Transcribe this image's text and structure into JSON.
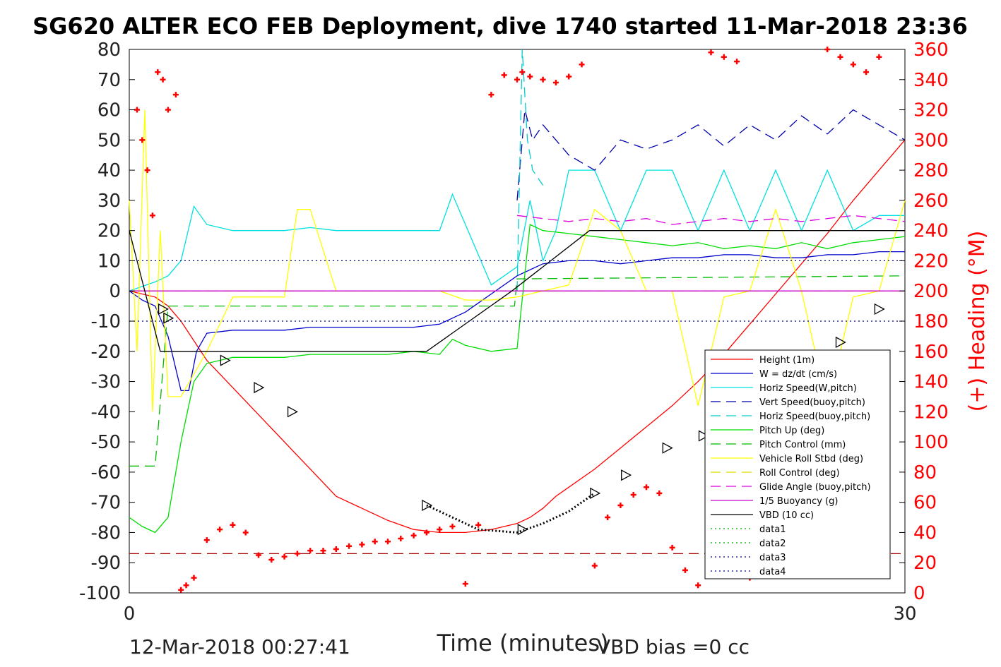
{
  "chart_data": {
    "type": "line",
    "title": "SG620 ALTER ECO FEB Deployment, dive 1740 started 11-Mar-2018 23:36",
    "xlabel": "Time (minutes)",
    "ylabel": "",
    "y2label": "(+) Heading (°M)",
    "xlim": [
      0,
      30
    ],
    "ylim": [
      -100,
      80
    ],
    "y2lim": [
      0,
      360
    ],
    "xticks": [
      "0",
      "30"
    ],
    "yticks": [
      "80",
      "70",
      "60",
      "50",
      "40",
      "30",
      "20",
      "10",
      "0",
      "-10",
      "-20",
      "-30",
      "-40",
      "-50",
      "-60",
      "-70",
      "-80",
      "-90",
      "-100"
    ],
    "y2ticks": [
      "360",
      "340",
      "320",
      "300",
      "280",
      "260",
      "240",
      "220",
      "200",
      "180",
      "160",
      "140",
      "120",
      "100",
      "80",
      "60",
      "40",
      "20",
      "0"
    ],
    "footer_left": "12-Mar-2018 00:27:41",
    "footer_right": "VBD bias =0 cc",
    "legend_position": "lower-right",
    "series": [
      {
        "name": "Height (1m)",
        "color": "#ff0000",
        "style": "solid",
        "x": [
          0,
          1,
          1.5,
          2,
          3,
          4,
          5,
          6,
          7,
          8,
          9,
          10,
          11,
          12,
          13,
          14,
          15,
          15.5,
          16,
          16.5,
          17,
          18,
          19,
          20,
          21,
          22,
          23,
          24,
          25,
          26,
          27,
          28,
          29,
          30
        ],
        "y": [
          0,
          -2,
          -5,
          -10,
          -23,
          -32,
          -41,
          -50,
          -59,
          -68,
          -72,
          -76,
          -79,
          -80,
          -80,
          -79,
          -77,
          -75,
          -72,
          -68,
          -65,
          -59,
          -52,
          -45,
          -38,
          -30,
          -21,
          -11,
          -1,
          9,
          19,
          30,
          40,
          50
        ]
      },
      {
        "name": "W = dz/dt (cm/s)",
        "color": "#0000cc",
        "style": "solid",
        "x": [
          0,
          0.5,
          1,
          1.5,
          2,
          2.3,
          2.6,
          3,
          4,
          5,
          6,
          7,
          8,
          9,
          10,
          11,
          12,
          12.5,
          13,
          13.5,
          14,
          15,
          16,
          17,
          18,
          19,
          20,
          21,
          22,
          23,
          24,
          25,
          26,
          27,
          28,
          29,
          30
        ],
        "y": [
          0,
          -3,
          -5,
          -15,
          -33,
          -33,
          -20,
          -14,
          -13,
          -13,
          -13,
          -12,
          -12,
          -12,
          -12,
          -12,
          -11,
          -9,
          -7,
          -4,
          -1,
          5,
          9,
          10,
          10,
          9,
          10,
          11,
          11,
          12,
          12,
          11,
          11,
          12,
          12,
          13,
          13
        ]
      },
      {
        "name": "Horiz Speed(W,pitch)",
        "color": "#00e0e0",
        "style": "solid",
        "x": [
          0,
          1,
          1.5,
          2,
          2.5,
          3,
          4,
          5,
          6,
          7,
          8,
          9,
          10,
          11,
          12,
          12.5,
          13,
          13.5,
          14,
          15,
          15.5,
          16,
          16.5,
          17,
          18,
          19,
          20,
          21,
          22,
          23,
          24,
          25,
          26,
          27,
          28,
          29,
          30
        ],
        "y": [
          0,
          3,
          5,
          10,
          28,
          22,
          20,
          20,
          20,
          21,
          20,
          20,
          20,
          20,
          20,
          32,
          22,
          12,
          2,
          8,
          30,
          10,
          20,
          40,
          40,
          20,
          40,
          40,
          20,
          40,
          20,
          40,
          20,
          40,
          20,
          25,
          25
        ]
      },
      {
        "name": "Vert Speed(buoy,pitch)",
        "color": "#0000aa",
        "style": "dashed",
        "x": [
          15,
          15.3,
          15.6,
          16,
          17,
          18,
          19,
          20,
          21,
          22,
          23,
          24,
          25,
          26,
          27,
          28,
          29,
          30
        ],
        "y": [
          30,
          60,
          50,
          55,
          45,
          40,
          50,
          47,
          50,
          55,
          48,
          55,
          50,
          58,
          52,
          60,
          55,
          50
        ]
      },
      {
        "name": "Horiz Speed(buoy,pitch)",
        "color": "#00cccc",
        "style": "dashed",
        "x": [
          15,
          15.2,
          15.4,
          15.6,
          16
        ],
        "y": [
          0,
          80,
          50,
          40,
          35
        ]
      },
      {
        "name": "Pitch Up (deg)",
        "color": "#00dd00",
        "style": "solid",
        "x": [
          0,
          0.5,
          1,
          1.5,
          2,
          2.5,
          3,
          4,
          5,
          6,
          7,
          8,
          9,
          10,
          11,
          12,
          12.5,
          13,
          14,
          15,
          15.5,
          16,
          17,
          18,
          19,
          20,
          21,
          22,
          23,
          24,
          25,
          26,
          27,
          28,
          29,
          30
        ],
        "y": [
          -75,
          -78,
          -80,
          -75,
          -50,
          -30,
          -24,
          -22,
          -22,
          -22,
          -21,
          -21,
          -21,
          -21,
          -20,
          -21,
          -16,
          -18,
          -20,
          -19,
          22,
          20,
          19,
          18,
          17,
          16,
          15,
          16,
          14,
          15,
          14,
          16,
          14,
          16,
          17,
          18
        ]
      },
      {
        "name": "Pitch Control (mm)",
        "color": "#00bb00",
        "style": "dashed",
        "x": [
          0,
          1,
          1.5,
          2,
          14.9,
          15,
          30
        ],
        "y": [
          -58,
          -58,
          -5,
          -5,
          -5,
          4,
          5
        ]
      },
      {
        "name": "Vehicle Roll Stbd (deg)",
        "color": "#ffff00",
        "style": "solid",
        "x": [
          0,
          0.3,
          0.6,
          0.9,
          1.2,
          1.5,
          2,
          3,
          4,
          5,
          6,
          6.5,
          7,
          8,
          9,
          10,
          11,
          12,
          13,
          14,
          15,
          16,
          17,
          18,
          19,
          20,
          21,
          22,
          23,
          24,
          25,
          26,
          27,
          28,
          29,
          30
        ],
        "y": [
          30,
          -20,
          60,
          -40,
          20,
          -35,
          -35,
          -20,
          -2,
          -2,
          -2,
          27,
          27,
          0,
          0,
          0,
          0,
          0,
          -3,
          -3,
          -2,
          0,
          2,
          27,
          20,
          0,
          0,
          -38,
          -2,
          0,
          27,
          0,
          -38,
          -2,
          0,
          30
        ]
      },
      {
        "name": "Roll Control (deg)",
        "color": "#dddd00",
        "style": "dashed",
        "x": [
          0,
          30
        ],
        "y": [
          0,
          0
        ]
      },
      {
        "name": "Glide Angle (buoy,pitch)",
        "color": "#dd00dd",
        "style": "dashed",
        "x": [
          15,
          16,
          17,
          18,
          19,
          20,
          21,
          22,
          23,
          24,
          25,
          26,
          27,
          28,
          29,
          30
        ],
        "y": [
          25,
          24,
          23,
          24,
          23,
          24,
          22,
          23,
          24,
          23,
          24,
          23,
          24,
          25,
          24,
          23
        ]
      },
      {
        "name": "1/5 Buoyancy (g)",
        "color": "#cc00cc",
        "style": "solid",
        "x": [
          0,
          30
        ],
        "y": [
          0,
          0
        ]
      },
      {
        "name": "VBD (10 cc)",
        "color": "#000000",
        "style": "solid",
        "x": [
          0,
          1.2,
          11.5,
          14.8,
          17.8,
          30
        ],
        "y": [
          20,
          -20,
          -20,
          0,
          20,
          20
        ]
      },
      {
        "name": "data1",
        "color": "#00aa00",
        "style": "dotted",
        "x": [],
        "y": []
      },
      {
        "name": "data2",
        "color": "#00aa00",
        "style": "dotted",
        "x": [],
        "y": []
      },
      {
        "name": "data3",
        "color": "#000088",
        "style": "dotted",
        "x": [
          0,
          30
        ],
        "y": [
          10,
          10
        ]
      },
      {
        "name": "data4",
        "color": "#000088",
        "style": "dotted",
        "x": [
          0,
          30
        ],
        "y": [
          -10,
          -10
        ]
      }
    ],
    "heading": {
      "color": "#ff0000",
      "axis": "right",
      "x": [
        0.3,
        0.5,
        0.7,
        0.9,
        1.1,
        1.3,
        1.5,
        1.8,
        2.0,
        2.2,
        2.5,
        3,
        3.5,
        4,
        4.5,
        5,
        5.5,
        6,
        6.5,
        7,
        7.5,
        8,
        8.5,
        9,
        9.5,
        10,
        10.5,
        11,
        11.5,
        12,
        12.5,
        13,
        13.5,
        14,
        14.5,
        15,
        15.2,
        15.5,
        16,
        16.5,
        17,
        17.5,
        18,
        18.5,
        19,
        19.5,
        20,
        20.5,
        21,
        21.5,
        22,
        22.5,
        23,
        23.5,
        24,
        24.5,
        25,
        25.5,
        26,
        26.5,
        27,
        27.5,
        28,
        28.5,
        29
      ],
      "y": [
        320,
        300,
        280,
        250,
        345,
        340,
        320,
        330,
        2,
        5,
        10,
        35,
        42,
        45,
        40,
        25,
        22,
        24,
        26,
        28,
        28,
        29,
        31,
        32,
        34,
        34,
        36,
        38,
        40,
        42,
        44,
        6,
        45,
        330,
        343,
        340,
        345,
        342,
        340,
        338,
        342,
        350,
        18,
        50,
        58,
        65,
        70,
        66,
        30,
        15,
        5,
        358,
        355,
        352,
        10,
        30,
        50,
        56,
        60,
        58,
        360,
        355,
        350,
        345,
        355
      ]
    },
    "reference_line": {
      "y": -87,
      "color": "#aa0000",
      "style": "dashed"
    },
    "triangle_markers": {
      "x": [
        1.3,
        1.5,
        3.7,
        5,
        6.3,
        11.5,
        15.2,
        18,
        19.2,
        20.8,
        22.2,
        23.8,
        24.6,
        26.2,
        27.5,
        29
      ],
      "y": [
        -6,
        -9,
        -23,
        -32,
        -40,
        -71,
        -79,
        -67,
        -61,
        -52,
        -48,
        -38,
        -33,
        -23,
        -17,
        -6
      ]
    },
    "dotted_bottom": {
      "x": [
        11.5,
        12.5,
        13.5,
        15,
        16,
        17,
        18
      ],
      "y": [
        -71,
        -75,
        -79,
        -80,
        -77,
        -73,
        -67
      ],
      "color": "#000000"
    }
  }
}
